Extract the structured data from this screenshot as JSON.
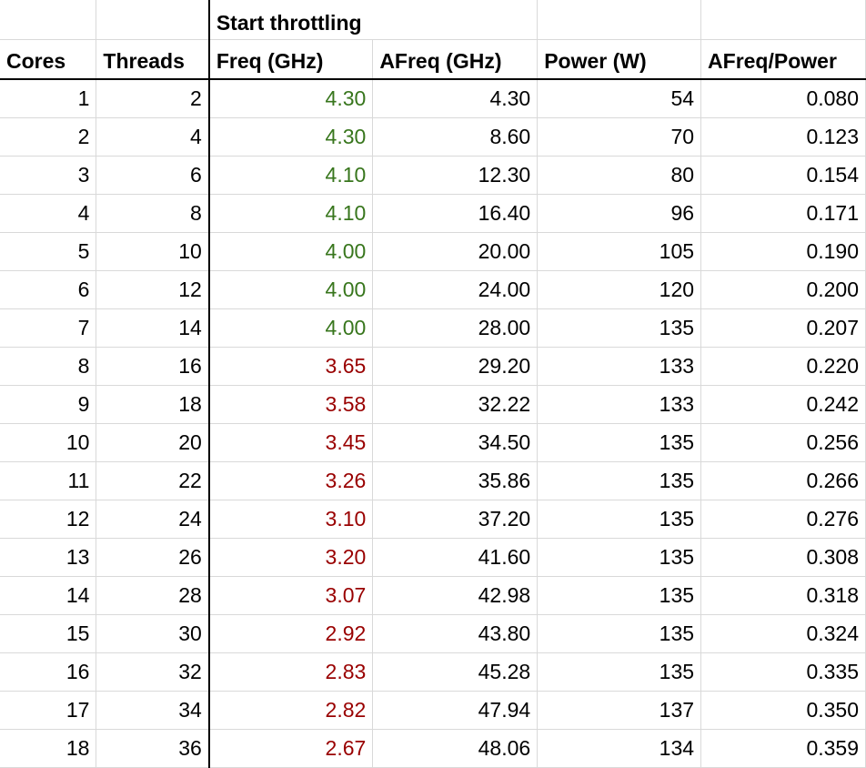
{
  "colors": {
    "ok_freq": "#38761d",
    "throttled_freq": "#990000",
    "grid_line": "#d9d9d9"
  },
  "header": {
    "group_label": "Start throttling",
    "columns": [
      "Cores",
      "Threads",
      "Freq (GHz)",
      "AFreq (GHz)",
      "Power (W)",
      "AFreq/Power"
    ]
  },
  "rows": [
    {
      "cores": "1",
      "threads": "2",
      "freq": "4.30",
      "afreq": "4.30",
      "power": "54",
      "ratio": "0.080",
      "status": "ok"
    },
    {
      "cores": "2",
      "threads": "4",
      "freq": "4.30",
      "afreq": "8.60",
      "power": "70",
      "ratio": "0.123",
      "status": "ok"
    },
    {
      "cores": "3",
      "threads": "6",
      "freq": "4.10",
      "afreq": "12.30",
      "power": "80",
      "ratio": "0.154",
      "status": "ok"
    },
    {
      "cores": "4",
      "threads": "8",
      "freq": "4.10",
      "afreq": "16.40",
      "power": "96",
      "ratio": "0.171",
      "status": "ok"
    },
    {
      "cores": "5",
      "threads": "10",
      "freq": "4.00",
      "afreq": "20.00",
      "power": "105",
      "ratio": "0.190",
      "status": "ok"
    },
    {
      "cores": "6",
      "threads": "12",
      "freq": "4.00",
      "afreq": "24.00",
      "power": "120",
      "ratio": "0.200",
      "status": "ok"
    },
    {
      "cores": "7",
      "threads": "14",
      "freq": "4.00",
      "afreq": "28.00",
      "power": "135",
      "ratio": "0.207",
      "status": "ok"
    },
    {
      "cores": "8",
      "threads": "16",
      "freq": "3.65",
      "afreq": "29.20",
      "power": "133",
      "ratio": "0.220",
      "status": "throttled"
    },
    {
      "cores": "9",
      "threads": "18",
      "freq": "3.58",
      "afreq": "32.22",
      "power": "133",
      "ratio": "0.242",
      "status": "throttled"
    },
    {
      "cores": "10",
      "threads": "20",
      "freq": "3.45",
      "afreq": "34.50",
      "power": "135",
      "ratio": "0.256",
      "status": "throttled"
    },
    {
      "cores": "11",
      "threads": "22",
      "freq": "3.26",
      "afreq": "35.86",
      "power": "135",
      "ratio": "0.266",
      "status": "throttled"
    },
    {
      "cores": "12",
      "threads": "24",
      "freq": "3.10",
      "afreq": "37.20",
      "power": "135",
      "ratio": "0.276",
      "status": "throttled"
    },
    {
      "cores": "13",
      "threads": "26",
      "freq": "3.20",
      "afreq": "41.60",
      "power": "135",
      "ratio": "0.308",
      "status": "throttled"
    },
    {
      "cores": "14",
      "threads": "28",
      "freq": "3.07",
      "afreq": "42.98",
      "power": "135",
      "ratio": "0.318",
      "status": "throttled"
    },
    {
      "cores": "15",
      "threads": "30",
      "freq": "2.92",
      "afreq": "43.80",
      "power": "135",
      "ratio": "0.324",
      "status": "throttled"
    },
    {
      "cores": "16",
      "threads": "32",
      "freq": "2.83",
      "afreq": "45.28",
      "power": "135",
      "ratio": "0.335",
      "status": "throttled"
    },
    {
      "cores": "17",
      "threads": "34",
      "freq": "2.82",
      "afreq": "47.94",
      "power": "137",
      "ratio": "0.350",
      "status": "throttled"
    },
    {
      "cores": "18",
      "threads": "36",
      "freq": "2.67",
      "afreq": "48.06",
      "power": "134",
      "ratio": "0.359",
      "status": "throttled"
    }
  ]
}
